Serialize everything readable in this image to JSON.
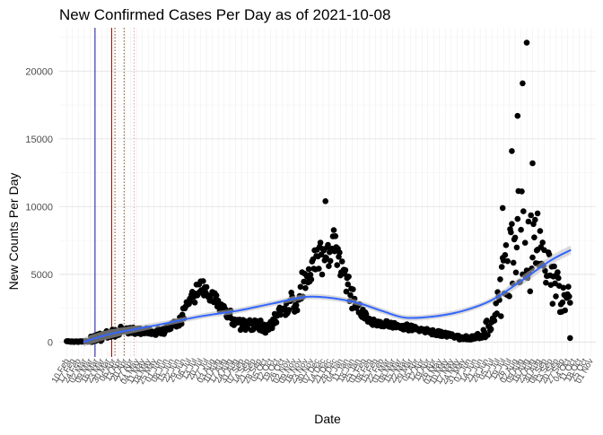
{
  "chart_data": {
    "type": "scatter",
    "title": "New Confirmed Cases Per Day as of 2021-10-08",
    "xlabel": "Date",
    "ylabel": "New Counts Per Day",
    "ylim": [
      -1100,
      23200
    ],
    "yticks": [
      0,
      5000,
      10000,
      15000,
      20000
    ],
    "xlim": [
      "2020-02-01",
      "2021-11-07"
    ],
    "x_ticks": {
      "first": "2020-02-10",
      "last": "2021-11-07",
      "interval_days": 7,
      "label_format": "DD Mon",
      "range_covered": [
        "10 Feb",
        "07 Nov"
      ]
    },
    "grid": true,
    "legend": "none",
    "colors": {
      "points": "#000000",
      "smooth_line": "#3366ff",
      "smooth_band": "#bdbdbd",
      "vline_blue": "#1a1aa8",
      "vline_darkred": "#8b0000",
      "vline_brown_dotted": "#8b4513",
      "vline_pink_dotted": "#e8a0a0"
    },
    "reference_lines": [
      {
        "date": "2020-03-15",
        "color": "#1a1aa8",
        "style": "solid"
      },
      {
        "date": "2020-04-04",
        "color": "#8b0000",
        "style": "solid"
      },
      {
        "date": "2020-04-08",
        "color": "#8b4513",
        "style": "dotted"
      },
      {
        "date": "2020-04-19",
        "color": "#8b4513",
        "style": "dotted"
      },
      {
        "date": "2020-05-01",
        "color": "#e8a0a0",
        "style": "dotted"
      }
    ],
    "trend_keypoints": [
      {
        "x": "2020-03-01",
        "y": 0
      },
      {
        "x": "2020-04-03",
        "y": 600
      },
      {
        "x": "2020-06-01",
        "y": 1300
      },
      {
        "x": "2020-07-20",
        "y": 1900
      },
      {
        "x": "2020-09-01",
        "y": 2300
      },
      {
        "x": "2020-10-15",
        "y": 2850
      },
      {
        "x": "2020-11-29",
        "y": 3350
      },
      {
        "x": "2021-01-18",
        "y": 3000
      },
      {
        "x": "2021-02-23",
        "y": 2300
      },
      {
        "x": "2021-03-23",
        "y": 1800
      },
      {
        "x": "2021-04-27",
        "y": 1900
      },
      {
        "x": "2021-05-31",
        "y": 2300
      },
      {
        "x": "2021-07-05",
        "y": 3100
      },
      {
        "x": "2021-08-09",
        "y": 4500
      },
      {
        "x": "2021-09-13",
        "y": 6000
      },
      {
        "x": "2021-10-08",
        "y": 6800
      }
    ],
    "phases": [
      {
        "from": "2020-02-10",
        "to": "2020-03-10",
        "start": 0,
        "end": 60,
        "noise": 40
      },
      {
        "from": "2020-03-10",
        "to": "2020-04-15",
        "start": 60,
        "end": 900,
        "noise": 350
      },
      {
        "from": "2020-04-15",
        "to": "2020-06-01",
        "start": 900,
        "end": 750,
        "noise": 250
      },
      {
        "from": "2020-06-01",
        "to": "2020-06-25",
        "start": 750,
        "end": 1400,
        "noise": 300
      },
      {
        "from": "2020-06-25",
        "to": "2020-07-20",
        "start": 1400,
        "end": 4300,
        "noise": 650
      },
      {
        "from": "2020-07-20",
        "to": "2020-08-05",
        "start": 4300,
        "end": 3400,
        "noise": 650
      },
      {
        "from": "2020-08-05",
        "to": "2020-08-31",
        "start": 3400,
        "end": 1300,
        "noise": 550
      },
      {
        "from": "2020-08-31",
        "to": "2020-10-05",
        "start": 1300,
        "end": 1200,
        "noise": 400
      },
      {
        "from": "2020-10-05",
        "to": "2020-11-05",
        "start": 1200,
        "end": 2500,
        "noise": 600
      },
      {
        "from": "2020-11-05",
        "to": "2020-12-05",
        "start": 2500,
        "end": 6000,
        "noise": 1100
      },
      {
        "from": "2020-12-05",
        "to": "2020-12-28",
        "start": 6000,
        "end": 7000,
        "noise": 1400
      },
      {
        "from": "2020-12-28",
        "to": "2021-01-20",
        "start": 7000,
        "end": 3000,
        "noise": 1000
      },
      {
        "from": "2021-01-20",
        "to": "2021-02-10",
        "start": 3000,
        "end": 1500,
        "noise": 500
      },
      {
        "from": "2021-02-10",
        "to": "2021-04-01",
        "start": 1500,
        "end": 1000,
        "noise": 250
      },
      {
        "from": "2021-04-01",
        "to": "2021-06-01",
        "start": 1000,
        "end": 300,
        "noise": 180
      },
      {
        "from": "2021-06-01",
        "to": "2021-06-25",
        "start": 300,
        "end": 500,
        "noise": 200
      },
      {
        "from": "2021-06-25",
        "to": "2021-07-15",
        "start": 500,
        "end": 3500,
        "noise": 900
      },
      {
        "from": "2021-07-15",
        "to": "2021-08-05",
        "start": 3500,
        "end": 8000,
        "noise": 2500
      },
      {
        "from": "2021-08-05",
        "to": "2021-08-25",
        "start": 8000,
        "end": 7500,
        "noise": 4000
      },
      {
        "from": "2021-08-25",
        "to": "2021-09-20",
        "start": 7500,
        "end": 4000,
        "noise": 1800
      },
      {
        "from": "2021-09-20",
        "to": "2021-10-08",
        "start": 4000,
        "end": 2500,
        "noise": 1400
      }
    ],
    "highlight_points": [
      {
        "x": "2020-12-17",
        "y": 10400
      },
      {
        "x": "2021-07-18",
        "y": 9900
      },
      {
        "x": "2021-07-29",
        "y": 14100
      },
      {
        "x": "2021-08-05",
        "y": 16700
      },
      {
        "x": "2021-08-11",
        "y": 19100
      },
      {
        "x": "2021-08-16",
        "y": 22100
      },
      {
        "x": "2021-08-23",
        "y": 13200
      },
      {
        "x": "2021-08-29",
        "y": 9500
      },
      {
        "x": "2021-10-07",
        "y": 300
      }
    ]
  }
}
